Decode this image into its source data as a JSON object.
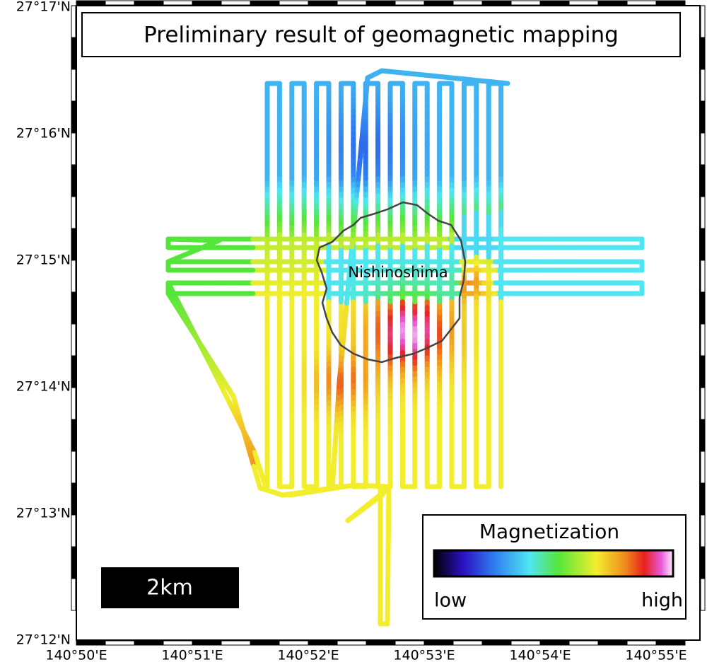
{
  "map": {
    "title": "Preliminary result of geomagnetic mapping",
    "lat_labels": [
      "27°17'N",
      "27°16'N",
      "27°15'N",
      "27°14'N",
      "27°13'N",
      "27°12'N"
    ],
    "lon_labels": [
      "140°50'E",
      "140°51'E",
      "140°52'E",
      "140°53'E",
      "140°54'E",
      "140°55'E"
    ],
    "place_label": "Nishinoshima",
    "scale_bar": "2km",
    "legend": {
      "title": "Magnetization",
      "low": "low",
      "high": "high"
    }
  }
}
